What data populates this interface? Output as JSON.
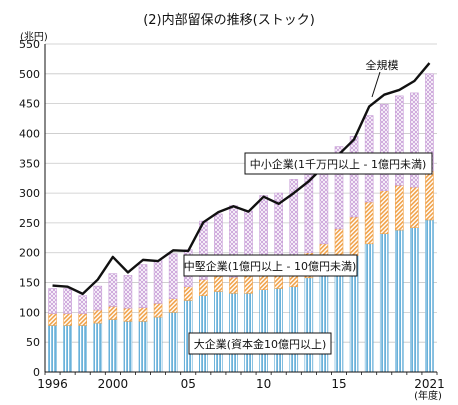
{
  "chart_data": {
    "type": "bar",
    "title": "(2)内部留保の推移(ストック)",
    "ylabel": "(兆円)",
    "xlabel": "(年度)",
    "ylim": [
      0,
      550
    ],
    "yticks": [
      0,
      50,
      100,
      150,
      200,
      250,
      300,
      350,
      400,
      450,
      500,
      550
    ],
    "grid": true,
    "x": [
      1996,
      1997,
      1998,
      1999,
      2000,
      2001,
      2002,
      2003,
      2004,
      2005,
      2006,
      2007,
      2008,
      2009,
      2010,
      2011,
      2012,
      2013,
      2014,
      2015,
      2016,
      2017,
      2018,
      2019,
      2020,
      2021
    ],
    "xtick_labels": [
      {
        "year": 1996,
        "label": "1996"
      },
      {
        "year": 2000,
        "label": "2000"
      },
      {
        "year": 2005,
        "label": "05"
      },
      {
        "year": 2010,
        "label": "10"
      },
      {
        "year": 2015,
        "label": "15"
      },
      {
        "year": 2021,
        "label": "2021"
      }
    ],
    "series": [
      {
        "name": "大企業(資本金10億円以上)",
        "kind": "stacked-bar",
        "pattern": "vertical-hatch",
        "color": "#5aa9d6",
        "values": [
          78,
          78,
          78,
          82,
          88,
          85,
          85,
          92,
          100,
          120,
          128,
          135,
          132,
          132,
          138,
          140,
          143,
          158,
          165,
          180,
          195,
          215,
          232,
          238,
          242,
          255
        ]
      },
      {
        "name": "中堅企業(1億円以上 - 10億円未満)",
        "kind": "stacked-bar",
        "pattern": "diagonal-hatch",
        "color": "#f0a24a",
        "values": [
          20,
          20,
          20,
          22,
          22,
          22,
          23,
          23,
          23,
          23,
          27,
          28,
          27,
          30,
          38,
          38,
          38,
          42,
          50,
          60,
          65,
          70,
          72,
          75,
          68,
          82
        ]
      },
      {
        "name": "中小企業(1千万円以上 - 1億円未満)",
        "kind": "stacked-bar",
        "pattern": "crosshatch",
        "color": "#c9a0d8",
        "values": [
          42,
          42,
          30,
          40,
          55,
          55,
          72,
          72,
          75,
          62,
          98,
          102,
          120,
          108,
          120,
          122,
          142,
          148,
          145,
          138,
          135,
          145,
          145,
          150,
          158,
          163
        ]
      },
      {
        "name": "全規模",
        "kind": "line",
        "color": "#111111",
        "values": [
          145,
          143,
          131,
          155,
          193,
          167,
          188,
          186,
          204,
          203,
          251,
          268,
          278,
          269,
          294,
          282,
          300,
          320,
          345,
          365,
          390,
          445,
          465,
          473,
          488,
          518
        ]
      }
    ],
    "annotations": [
      {
        "text": "全規模",
        "target_series": 3,
        "year": 2017
      },
      {
        "text": "中小企業(1千万円以上 - 1億円未満)",
        "target_series": 2
      },
      {
        "text": "中堅企業(1億円以上 - 10億円未満)",
        "target_series": 1
      },
      {
        "text": "大企業(資本金10億円以上)",
        "target_series": 0
      }
    ]
  }
}
